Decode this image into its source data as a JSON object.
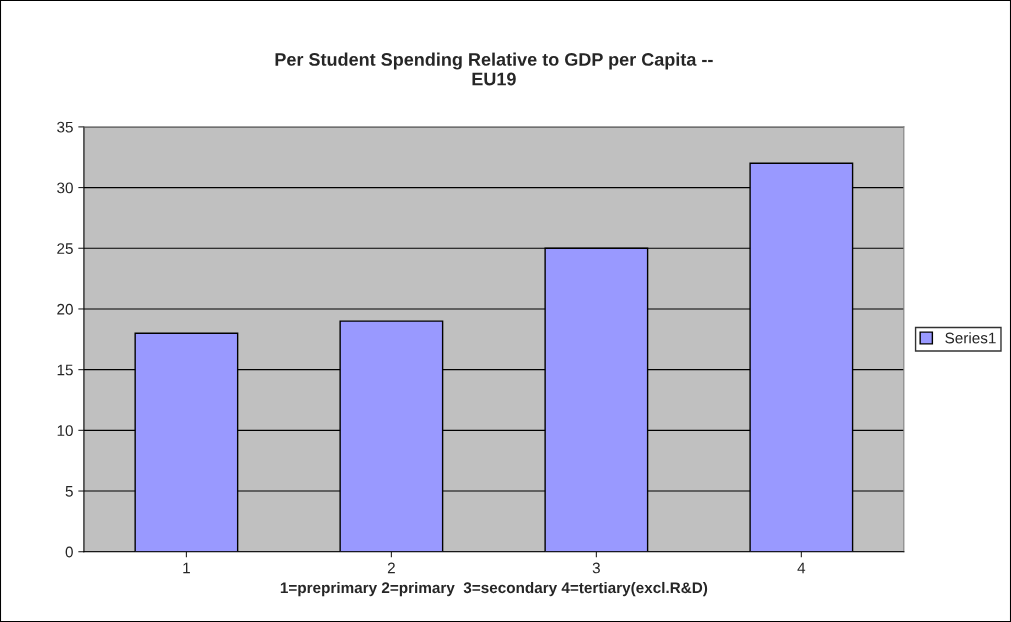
{
  "chart_data": {
    "type": "bar",
    "title": "Per Student Spending Relative to GDP per Capita --\nEU19",
    "xlabel": "1=preprimary 2=primary  3=secondary 4=tertiary(excl.R&D)",
    "categories": [
      "1",
      "2",
      "3",
      "4"
    ],
    "series": [
      {
        "name": "Series1",
        "color": "#9999ff",
        "values": [
          18,
          19,
          25,
          32
        ]
      }
    ],
    "ylim": [
      0,
      35
    ],
    "yticks": [
      0,
      5,
      10,
      15,
      20,
      25,
      30,
      35
    ],
    "grid": "y",
    "legend": "right"
  }
}
